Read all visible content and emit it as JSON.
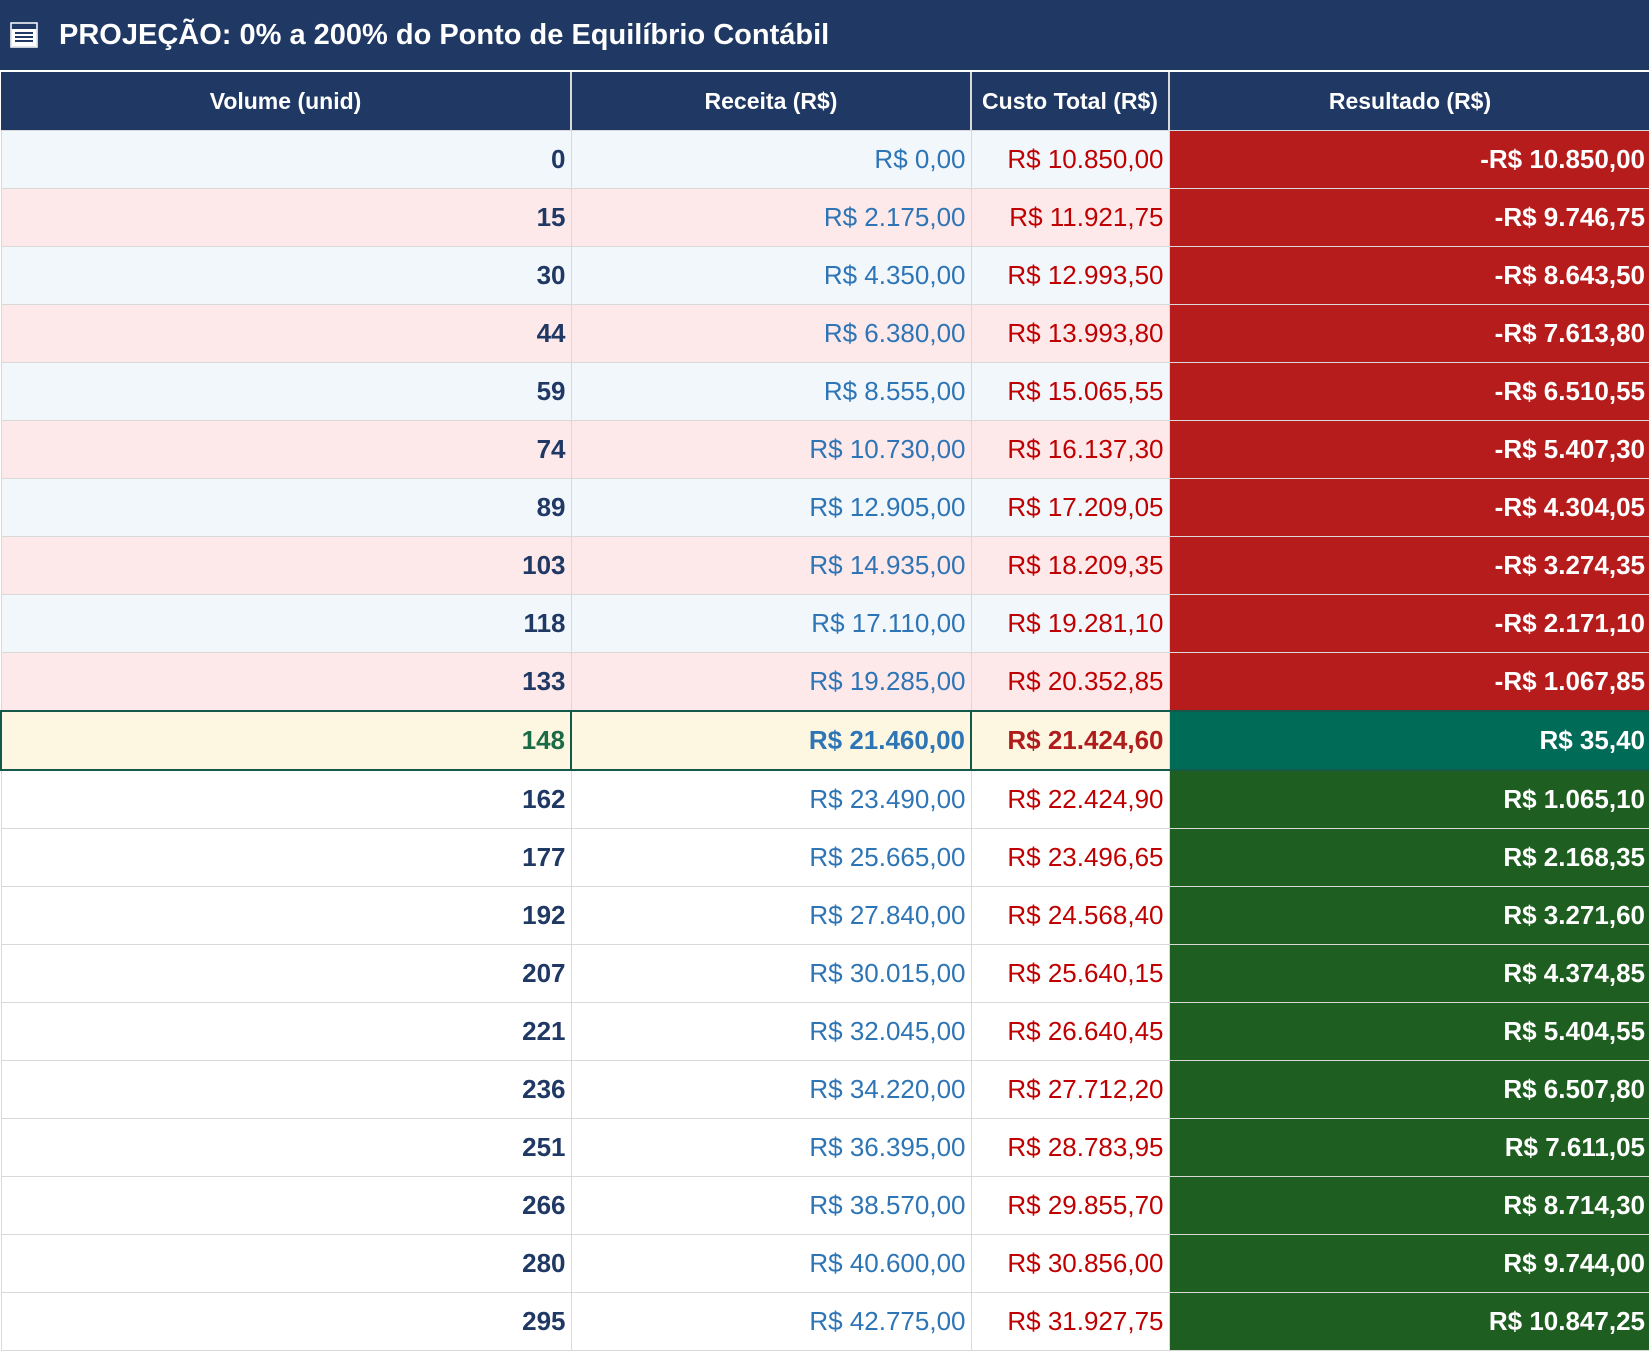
{
  "title": "PROJEÇÃO: 0% a 200% do Ponto de Equilíbrio Contábil",
  "title_icon": "table-icon",
  "columns": [
    "Volume (unid)",
    "Receita (R$)",
    "Custo Total (R$)",
    "Resultado (R$)"
  ],
  "colors": {
    "header_bg": "#1f3864",
    "loss_bg": "#b71c1c",
    "profit_bg": "#1e5e20",
    "breakeven_bg": "#006b56",
    "breakeven_row_bg": "#fdf7e2",
    "row_blue": "#f2f7fc",
    "row_pink": "#fde8ea"
  },
  "rows": [
    {
      "volume": "0",
      "receita": "R$ 0,00",
      "custo": "R$ 10.850,00",
      "resultado": "-R$ 10.850,00",
      "style": "blue",
      "sign": "neg"
    },
    {
      "volume": "15",
      "receita": "R$ 2.175,00",
      "custo": "R$ 11.921,75",
      "resultado": "-R$ 9.746,75",
      "style": "pink",
      "sign": "neg"
    },
    {
      "volume": "30",
      "receita": "R$ 4.350,00",
      "custo": "R$ 12.993,50",
      "resultado": "-R$ 8.643,50",
      "style": "blue",
      "sign": "neg"
    },
    {
      "volume": "44",
      "receita": "R$ 6.380,00",
      "custo": "R$ 13.993,80",
      "resultado": "-R$ 7.613,80",
      "style": "pink",
      "sign": "neg"
    },
    {
      "volume": "59",
      "receita": "R$ 8.555,00",
      "custo": "R$ 15.065,55",
      "resultado": "-R$ 6.510,55",
      "style": "blue",
      "sign": "neg"
    },
    {
      "volume": "74",
      "receita": "R$ 10.730,00",
      "custo": "R$ 16.137,30",
      "resultado": "-R$ 5.407,30",
      "style": "pink",
      "sign": "neg"
    },
    {
      "volume": "89",
      "receita": "R$ 12.905,00",
      "custo": "R$ 17.209,05",
      "resultado": "-R$ 4.304,05",
      "style": "blue",
      "sign": "neg"
    },
    {
      "volume": "103",
      "receita": "R$ 14.935,00",
      "custo": "R$ 18.209,35",
      "resultado": "-R$ 3.274,35",
      "style": "pink",
      "sign": "neg"
    },
    {
      "volume": "118",
      "receita": "R$ 17.110,00",
      "custo": "R$ 19.281,10",
      "resultado": "-R$ 2.171,10",
      "style": "blue",
      "sign": "neg"
    },
    {
      "volume": "133",
      "receita": "R$ 19.285,00",
      "custo": "R$ 20.352,85",
      "resultado": "-R$ 1.067,85",
      "style": "pink",
      "sign": "neg"
    },
    {
      "volume": "148",
      "receita": "R$ 21.460,00",
      "custo": "R$ 21.424,60",
      "resultado": "R$ 35,40",
      "style": "be",
      "sign": "be"
    },
    {
      "volume": "162",
      "receita": "R$ 23.490,00",
      "custo": "R$ 22.424,90",
      "resultado": "R$ 1.065,10",
      "style": "white",
      "sign": "pos"
    },
    {
      "volume": "177",
      "receita": "R$ 25.665,00",
      "custo": "R$ 23.496,65",
      "resultado": "R$ 2.168,35",
      "style": "white",
      "sign": "pos"
    },
    {
      "volume": "192",
      "receita": "R$ 27.840,00",
      "custo": "R$ 24.568,40",
      "resultado": "R$ 3.271,60",
      "style": "white",
      "sign": "pos"
    },
    {
      "volume": "207",
      "receita": "R$ 30.015,00",
      "custo": "R$ 25.640,15",
      "resultado": "R$ 4.374,85",
      "style": "white",
      "sign": "pos"
    },
    {
      "volume": "221",
      "receita": "R$ 32.045,00",
      "custo": "R$ 26.640,45",
      "resultado": "R$ 5.404,55",
      "style": "white",
      "sign": "pos"
    },
    {
      "volume": "236",
      "receita": "R$ 34.220,00",
      "custo": "R$ 27.712,20",
      "resultado": "R$ 6.507,80",
      "style": "white",
      "sign": "pos"
    },
    {
      "volume": "251",
      "receita": "R$ 36.395,00",
      "custo": "R$ 28.783,95",
      "resultado": "R$ 7.611,05",
      "style": "white",
      "sign": "pos"
    },
    {
      "volume": "266",
      "receita": "R$ 38.570,00",
      "custo": "R$ 29.855,70",
      "resultado": "R$ 8.714,30",
      "style": "white",
      "sign": "pos"
    },
    {
      "volume": "280",
      "receita": "R$ 40.600,00",
      "custo": "R$ 30.856,00",
      "resultado": "R$ 9.744,00",
      "style": "white",
      "sign": "pos"
    },
    {
      "volume": "295",
      "receita": "R$ 42.775,00",
      "custo": "R$ 31.927,75",
      "resultado": "R$ 10.847,25",
      "style": "white",
      "sign": "pos"
    }
  ]
}
